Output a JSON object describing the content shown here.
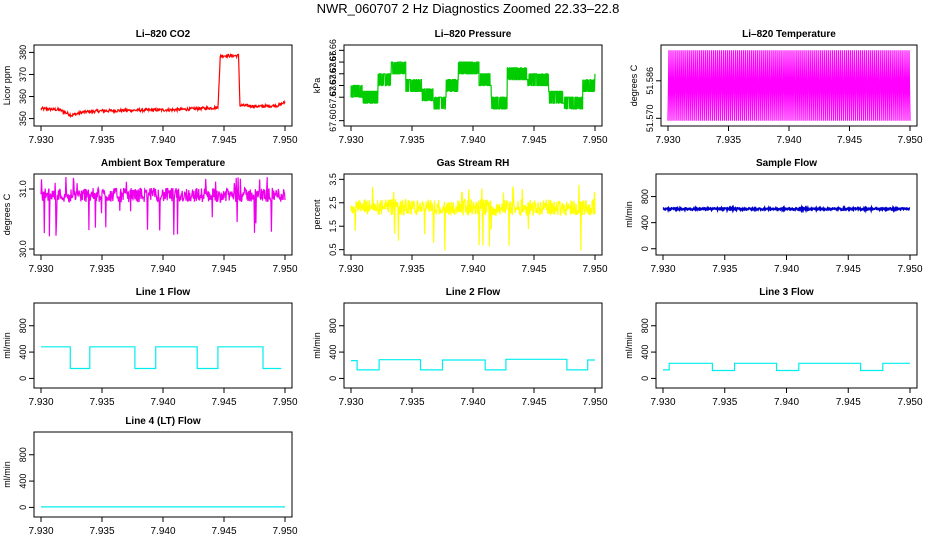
{
  "figure_title": "NWR_060707  2 Hz Diagnostics Zoomed 22.33–22.8",
  "colors": {
    "co2": "#ff0000",
    "pressure": "#00cc00",
    "temperature": "#ff00ff",
    "ambient": "#ee00ee",
    "rh": "#ffff00",
    "sample": "#0000cc",
    "line": "#00eeee"
  },
  "chart_data": [
    {
      "id": "co2",
      "type": "line",
      "title": "Li–820 CO2",
      "ylabel": "Licor ppm",
      "xlim": [
        7.93,
        7.95
      ],
      "xticks": [
        "7.930",
        "7.935",
        "7.940",
        "7.945",
        "7.950"
      ],
      "ylim": [
        348,
        382
      ],
      "yticks": [
        "350",
        "360",
        "370",
        "380"
      ],
      "ytick_values": [
        350,
        360,
        370,
        380
      ],
      "color": "#ff0000",
      "series": [
        {
          "name": "CO2",
          "points": [
            [
              7.93,
              354.5
            ],
            [
              7.9315,
              354
            ],
            [
              7.9325,
              351.5
            ],
            [
              7.9335,
              353
            ],
            [
              7.935,
              353.5
            ],
            [
              7.938,
              353.8
            ],
            [
              7.941,
              354
            ],
            [
              7.9445,
              355
            ],
            [
              7.9447,
              378.5
            ],
            [
              7.9462,
              378.5
            ],
            [
              7.9463,
              356
            ],
            [
              7.948,
              355.5
            ],
            [
              7.9495,
              356
            ],
            [
              7.95,
              357.5
            ]
          ]
        }
      ]
    },
    {
      "id": "pressure",
      "type": "line",
      "title": "Li–820 Pressure",
      "ylabel": "kPa",
      "xlim": [
        7.93,
        7.95
      ],
      "xticks": [
        "7.930",
        "7.935",
        "7.940",
        "7.945",
        "7.950"
      ],
      "ylim": [
        67.598,
        67.662
      ],
      "yticks": [
        "67.60",
        "67.63",
        "67.66"
      ],
      "ytick_values": [
        67.6,
        67.63,
        67.66
      ],
      "extra_yticks": [
        "67.63",
        "67.63",
        "67.66"
      ],
      "color": "#00cc00",
      "series": [
        {
          "name": "Pressure",
          "points": [
            [
              7.93,
              67.625
            ],
            [
              7.931,
              67.62
            ],
            [
              7.9322,
              67.635
            ],
            [
              7.9333,
              67.645
            ],
            [
              7.9345,
              67.63
            ],
            [
              7.9358,
              67.622
            ],
            [
              7.9368,
              67.615
            ],
            [
              7.9378,
              67.63
            ],
            [
              7.9388,
              67.645
            ],
            [
              7.9405,
              67.635
            ],
            [
              7.9415,
              67.615
            ],
            [
              7.9428,
              67.64
            ],
            [
              7.9445,
              67.635
            ],
            [
              7.9462,
              67.62
            ],
            [
              7.9475,
              67.615
            ],
            [
              7.949,
              67.63
            ],
            [
              7.95,
              67.645
            ]
          ]
        }
      ]
    },
    {
      "id": "temperature",
      "type": "line",
      "title": "Li–820 Temperature",
      "ylabel": "degrees C",
      "xlim": [
        7.93,
        7.95
      ],
      "xticks": [
        "7.930",
        "7.935",
        "7.940",
        "7.945",
        "7.950"
      ],
      "ylim": [
        51.568,
        51.6
      ],
      "yticks": [
        "51.570",
        "51.586"
      ],
      "ytick_values": [
        51.57,
        51.586
      ],
      "color": "#ff00ff",
      "series": [
        {
          "name": "Temperature",
          "low": 51.569,
          "high": 51.599
        }
      ]
    },
    {
      "id": "ambient",
      "type": "line",
      "title": "Ambient Box Temperature",
      "ylabel": "degrees C",
      "xlim": [
        7.93,
        7.95
      ],
      "xticks": [
        "7.930",
        "7.935",
        "7.940",
        "7.945",
        "7.950"
      ],
      "ylim": [
        29.95,
        31.2
      ],
      "yticks": [
        "30.0",
        "31.0"
      ],
      "ytick_values": [
        30.0,
        31.0
      ],
      "color": "#ee00ee",
      "series": [
        {
          "name": "Ambient",
          "mean": 30.9,
          "spread": 0.12
        }
      ]
    },
    {
      "id": "rh",
      "type": "line",
      "title": "Gas Stream RH",
      "ylabel": "percent",
      "xlim": [
        7.93,
        7.95
      ],
      "xticks": [
        "7.930",
        "7.935",
        "7.940",
        "7.945",
        "7.950"
      ],
      "ylim": [
        0.4,
        3.6
      ],
      "yticks": [
        "0.5",
        "1.5",
        "2.5",
        "3.5"
      ],
      "ytick_values": [
        0.5,
        1.5,
        2.5,
        3.5
      ],
      "color": "#ffff00",
      "series": [
        {
          "name": "RH",
          "mean": 2.3,
          "spread": 0.35
        }
      ]
    },
    {
      "id": "sample",
      "type": "line",
      "title": "Sample Flow",
      "ylabel": "ml/min",
      "xlim": [
        7.93,
        7.95
      ],
      "xticks": [
        "7.930",
        "7.935",
        "7.940",
        "7.945",
        "7.950"
      ],
      "ylim": [
        -50,
        1100
      ],
      "yticks": [
        "0",
        "400",
        "800"
      ],
      "ytick_values": [
        0,
        400,
        800
      ],
      "color": "#0000cc",
      "series": [
        {
          "name": "Sample Flow",
          "points": [
            [
              7.93,
              600
            ],
            [
              7.935,
              620
            ],
            [
              7.94,
              610
            ],
            [
              7.945,
              615
            ],
            [
              7.95,
              600
            ]
          ]
        }
      ]
    },
    {
      "id": "line1",
      "type": "line",
      "title": "Line 1 Flow",
      "ylabel": "ml/min",
      "xlim": [
        7.93,
        7.95
      ],
      "xticks": [
        "7.930",
        "7.935",
        "7.940",
        "7.945",
        "7.950"
      ],
      "ylim": [
        -100,
        1100
      ],
      "yticks": [
        "0",
        "400",
        "800"
      ],
      "ytick_values": [
        0,
        400,
        800
      ],
      "color": "#00eeee",
      "series": [
        {
          "name": "Line 1",
          "points": [
            [
              7.93,
              480
            ],
            [
              7.9324,
              480
            ],
            [
              7.9324,
              150
            ],
            [
              7.934,
              150
            ],
            [
              7.934,
              480
            ],
            [
              7.9377,
              480
            ],
            [
              7.9377,
              150
            ],
            [
              7.9394,
              150
            ],
            [
              7.9394,
              480
            ],
            [
              7.9428,
              480
            ],
            [
              7.9428,
              150
            ],
            [
              7.9445,
              150
            ],
            [
              7.9445,
              480
            ],
            [
              7.9482,
              480
            ],
            [
              7.9482,
              150
            ],
            [
              7.9497,
              150
            ]
          ]
        }
      ]
    },
    {
      "id": "line2",
      "type": "line",
      "title": "Line 2 Flow",
      "ylabel": "ml/min",
      "xlim": [
        7.93,
        7.95
      ],
      "xticks": [
        "7.930",
        "7.935",
        "7.940",
        "7.945",
        "7.950"
      ],
      "ylim": [
        -100,
        1100
      ],
      "yticks": [
        "0",
        "400",
        "800"
      ],
      "ytick_values": [
        0,
        400,
        800
      ],
      "color": "#00eeee",
      "series": [
        {
          "name": "Line 2",
          "points": [
            [
              7.93,
              270
            ],
            [
              7.9305,
              270
            ],
            [
              7.9305,
              130
            ],
            [
              7.9323,
              130
            ],
            [
              7.9323,
              285
            ],
            [
              7.9357,
              285
            ],
            [
              7.9357,
              130
            ],
            [
              7.9375,
              130
            ],
            [
              7.9375,
              280
            ],
            [
              7.941,
              280
            ],
            [
              7.941,
              130
            ],
            [
              7.9427,
              130
            ],
            [
              7.9427,
              290
            ],
            [
              7.9477,
              290
            ],
            [
              7.9477,
              130
            ],
            [
              7.9494,
              130
            ],
            [
              7.9494,
              280
            ],
            [
              7.95,
              280
            ]
          ]
        }
      ]
    },
    {
      "id": "line3",
      "type": "line",
      "title": "Line 3 Flow",
      "ylabel": "ml/min",
      "xlim": [
        7.93,
        7.95
      ],
      "xticks": [
        "7.930",
        "7.935",
        "7.940",
        "7.945",
        "7.950"
      ],
      "ylim": [
        -100,
        1100
      ],
      "yticks": [
        "0",
        "400",
        "800"
      ],
      "ytick_values": [
        0,
        400,
        800
      ],
      "color": "#00eeee",
      "series": [
        {
          "name": "Line 3",
          "points": [
            [
              7.93,
              130
            ],
            [
              7.9305,
              130
            ],
            [
              7.9305,
              230
            ],
            [
              7.934,
              230
            ],
            [
              7.934,
              120
            ],
            [
              7.9358,
              120
            ],
            [
              7.9358,
              230
            ],
            [
              7.9392,
              230
            ],
            [
              7.9392,
              120
            ],
            [
              7.941,
              120
            ],
            [
              7.941,
              230
            ],
            [
              7.946,
              230
            ],
            [
              7.946,
              120
            ],
            [
              7.9478,
              120
            ],
            [
              7.9478,
              230
            ],
            [
              7.95,
              230
            ]
          ]
        }
      ]
    },
    {
      "id": "line4",
      "type": "line",
      "title": "Line 4 (LT) Flow",
      "ylabel": "ml/min",
      "xlim": [
        7.93,
        7.95
      ],
      "xticks": [
        "7.930",
        "7.935",
        "7.940",
        "7.945",
        "7.950"
      ],
      "ylim": [
        -100,
        1100
      ],
      "yticks": [
        "0",
        "400",
        "800"
      ],
      "ytick_values": [
        0,
        400,
        800
      ],
      "color": "#00eeee",
      "series": [
        {
          "name": "Line 4",
          "points": [
            [
              7.93,
              8
            ],
            [
              7.95,
              8
            ]
          ]
        }
      ]
    }
  ]
}
